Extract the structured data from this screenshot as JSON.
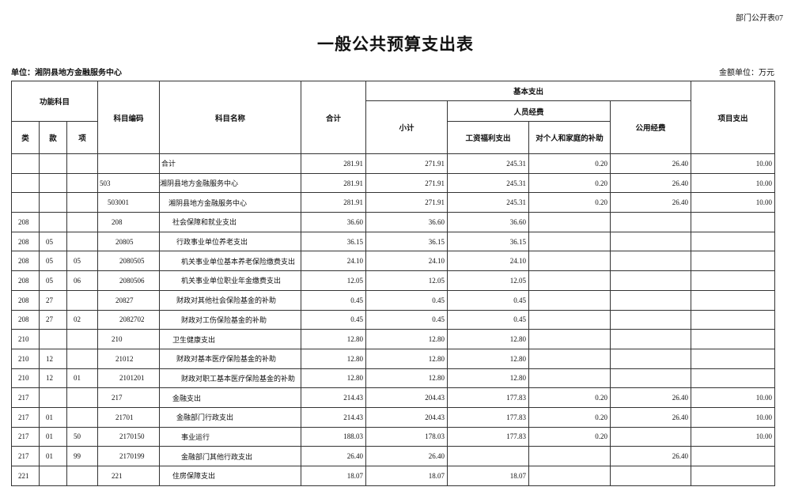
{
  "header": {
    "form_no": "部门公开表07",
    "title": "一般公共预算支出表",
    "unit": "单位：湘阴县地方金融服务中心",
    "amount_unit": "金额单位：万元"
  },
  "table": {
    "columns": {
      "function_subject": "功能科目",
      "class": "类",
      "section": "款",
      "item": "项",
      "code": "科目编码",
      "name": "科目名称",
      "total": "合计",
      "basic": "基本支出",
      "subtotal": "小计",
      "personnel": "人员经费",
      "wages": "工资福利支出",
      "subsidies": "对个人和家庭的补助",
      "public": "公用经费",
      "project": "项目支出"
    },
    "rows": [
      [
        null,
        null,
        null,
        null,
        "合计",
        "281.91",
        "271.91",
        "245.31",
        "0.20",
        "26.40",
        "10.00"
      ],
      [
        null,
        null,
        null,
        "503",
        "湘阴县地方金融服务中心",
        "281.91",
        "271.91",
        "245.31",
        "0.20",
        "26.40",
        "10.00"
      ],
      [
        null,
        null,
        null,
        "503001",
        "湘阴县地方金融服务中心",
        "281.91",
        "271.91",
        "245.31",
        "0.20",
        "26.40",
        "10.00"
      ],
      [
        "208",
        null,
        null,
        "208",
        "社会保障和就业支出",
        "36.60",
        "36.60",
        "36.60",
        null,
        null,
        null
      ],
      [
        "208",
        "05",
        null,
        "20805",
        "行政事业单位养老支出",
        "36.15",
        "36.15",
        "36.15",
        null,
        null,
        null
      ],
      [
        "208",
        "05",
        "05",
        "2080505",
        "机关事业单位基本养老保险缴费支出",
        "24.10",
        "24.10",
        "24.10",
        null,
        null,
        null
      ],
      [
        "208",
        "05",
        "06",
        "2080506",
        "机关事业单位职业年金缴费支出",
        "12.05",
        "12.05",
        "12.05",
        null,
        null,
        null
      ],
      [
        "208",
        "27",
        null,
        "20827",
        "财政对其他社会保险基金的补助",
        "0.45",
        "0.45",
        "0.45",
        null,
        null,
        null
      ],
      [
        "208",
        "27",
        "02",
        "2082702",
        "财政对工伤保险基金的补助",
        "0.45",
        "0.45",
        "0.45",
        null,
        null,
        null
      ],
      [
        "210",
        null,
        null,
        "210",
        "卫生健康支出",
        "12.80",
        "12.80",
        "12.80",
        null,
        null,
        null
      ],
      [
        "210",
        "12",
        null,
        "21012",
        "财政对基本医疗保险基金的补助",
        "12.80",
        "12.80",
        "12.80",
        null,
        null,
        null
      ],
      [
        "210",
        "12",
        "01",
        "2101201",
        "财政对职工基本医疗保险基金的补助",
        "12.80",
        "12.80",
        "12.80",
        null,
        null,
        null
      ],
      [
        "217",
        null,
        null,
        "217",
        "金融支出",
        "214.43",
        "204.43",
        "177.83",
        "0.20",
        "26.40",
        "10.00"
      ],
      [
        "217",
        "01",
        null,
        "21701",
        "金融部门行政支出",
        "214.43",
        "204.43",
        "177.83",
        "0.20",
        "26.40",
        "10.00"
      ],
      [
        "217",
        "01",
        "50",
        "2170150",
        "事业运行",
        "188.03",
        "178.03",
        "177.83",
        "0.20",
        null,
        "10.00"
      ],
      [
        "217",
        "01",
        "99",
        "2170199",
        "金融部门其他行政支出",
        "26.40",
        "26.40",
        null,
        null,
        "26.40",
        null
      ],
      [
        "221",
        null,
        null,
        "221",
        "住房保障支出",
        "18.07",
        "18.07",
        "18.07",
        null,
        null,
        null
      ]
    ]
  }
}
